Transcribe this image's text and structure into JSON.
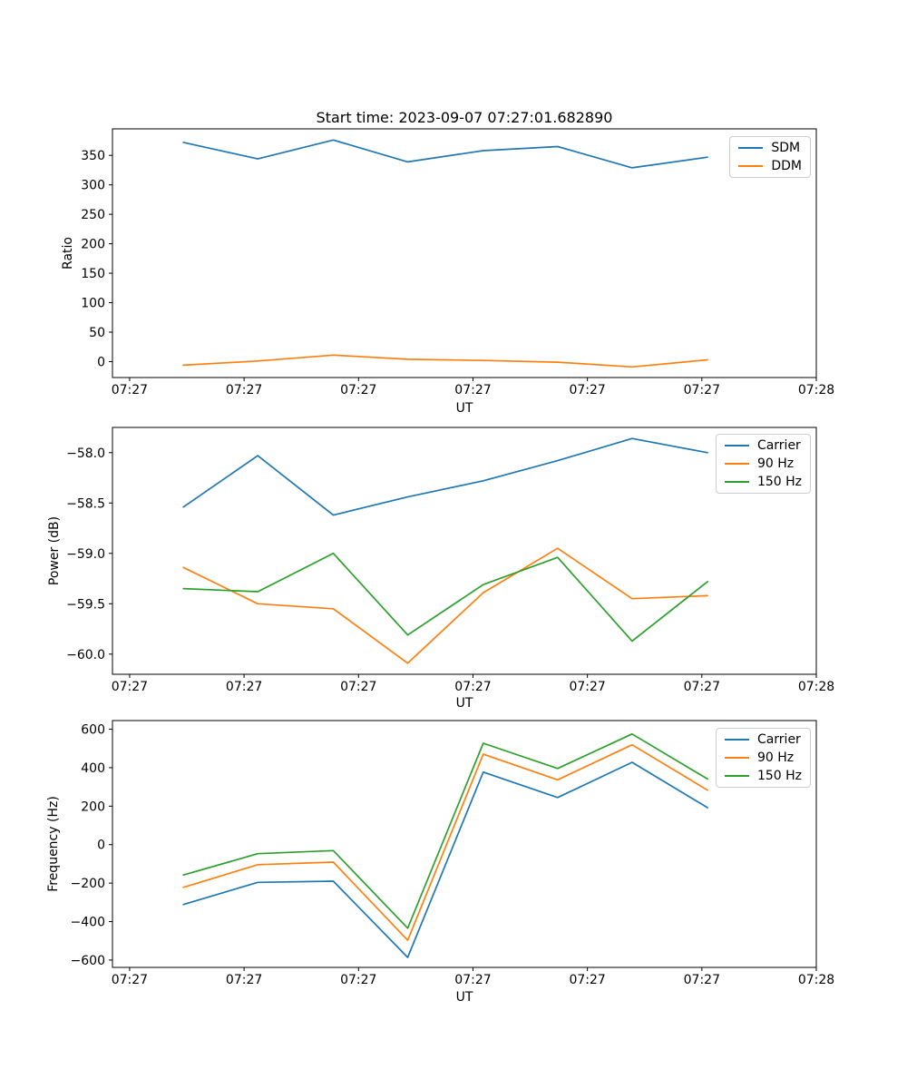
{
  "figure": {
    "title": "Start time: 2023-09-07 07:27:01.682890"
  },
  "palette": {
    "blue": "#1f77b4",
    "orange": "#ff7f0e",
    "green": "#2ca02c",
    "axis": "#000000",
    "legend_border": "#cccccc"
  },
  "chart_data": [
    {
      "type": "line",
      "title": "Start time: 2023-09-07 07:27:01.682890",
      "xlabel": "UT",
      "ylabel": "Ratio",
      "grid": false,
      "legend_position": "upper right",
      "x_seconds_after_072700": [
        4.7,
        11.2,
        17.8,
        24.3,
        30.9,
        37.4,
        43.9,
        50.5
      ],
      "xlim_seconds": [
        -1.5,
        60
      ],
      "xticks_seconds": [
        0,
        10,
        20,
        30,
        40,
        50,
        60
      ],
      "xtick_labels": [
        "07:27",
        "07:27",
        "07:27",
        "07:27",
        "07:27",
        "07:27",
        "07:28"
      ],
      "ylim": [
        -27,
        395
      ],
      "yticks": [
        0,
        50,
        100,
        150,
        200,
        250,
        300,
        350
      ],
      "ytick_labels": [
        "0",
        "50",
        "100",
        "150",
        "200",
        "250",
        "300",
        "350"
      ],
      "series": [
        {
          "name": "SDM",
          "color": "#1f77b4",
          "values": [
            372,
            344,
            376,
            339,
            358,
            365,
            329,
            347
          ]
        },
        {
          "name": "DDM",
          "color": "#ff7f0e",
          "values": [
            -6,
            1,
            11,
            4,
            2,
            -1,
            -9,
            3
          ]
        }
      ]
    },
    {
      "type": "line",
      "title": "",
      "xlabel": "UT",
      "ylabel": "Power (dB)",
      "grid": false,
      "legend_position": "upper right",
      "x_seconds_after_072700": [
        4.7,
        11.2,
        17.8,
        24.3,
        30.9,
        37.4,
        43.9,
        50.5
      ],
      "xlim_seconds": [
        -1.5,
        60
      ],
      "xticks_seconds": [
        0,
        10,
        20,
        30,
        40,
        50,
        60
      ],
      "xtick_labels": [
        "07:27",
        "07:27",
        "07:27",
        "07:27",
        "07:27",
        "07:27",
        "07:28"
      ],
      "ylim": [
        -60.2,
        -57.75
      ],
      "yticks": [
        -58.0,
        -58.5,
        -59.0,
        -59.5,
        -60.0
      ],
      "ytick_labels": [
        "−58.0",
        "−58.5",
        "−59.0",
        "−59.5",
        "−60.0"
      ],
      "series": [
        {
          "name": "Carrier",
          "color": "#1f77b4",
          "values": [
            -58.54,
            -58.03,
            -58.62,
            -58.44,
            -58.28,
            -58.08,
            -57.86,
            -58.0
          ]
        },
        {
          "name": "90 Hz",
          "color": "#ff7f0e",
          "values": [
            -59.14,
            -59.5,
            -59.55,
            -60.09,
            -59.39,
            -58.95,
            -59.45,
            -59.42
          ]
        },
        {
          "name": "150 Hz",
          "color": "#2ca02c",
          "values": [
            -59.35,
            -59.38,
            -59.0,
            -59.81,
            -59.31,
            -59.04,
            -59.87,
            -59.28
          ]
        }
      ]
    },
    {
      "type": "line",
      "title": "",
      "xlabel": "UT",
      "ylabel": "Frequency (Hz)",
      "grid": false,
      "legend_position": "upper right",
      "x_seconds_after_072700": [
        4.7,
        11.2,
        17.8,
        24.3,
        30.9,
        37.4,
        43.9,
        50.5
      ],
      "xlim_seconds": [
        -1.5,
        60
      ],
      "xticks_seconds": [
        0,
        10,
        20,
        30,
        40,
        50,
        60
      ],
      "xtick_labels": [
        "07:27",
        "07:27",
        "07:27",
        "07:27",
        "07:27",
        "07:27",
        "07:28"
      ],
      "ylim": [
        -638,
        645
      ],
      "yticks": [
        -600,
        -400,
        -200,
        0,
        200,
        400,
        600
      ],
      "ytick_labels": [
        "−600",
        "−400",
        "−200",
        "0",
        "200",
        "400",
        "600"
      ],
      "series": [
        {
          "name": "Carrier",
          "color": "#1f77b4",
          "values": [
            -311,
            -196,
            -190,
            -586,
            377,
            245,
            428,
            192
          ]
        },
        {
          "name": "90 Hz",
          "color": "#ff7f0e",
          "values": [
            -222,
            -104,
            -91,
            -497,
            470,
            337,
            519,
            283
          ]
        },
        {
          "name": "150 Hz",
          "color": "#2ca02c",
          "values": [
            -158,
            -47,
            -31,
            -434,
            527,
            396,
            575,
            341
          ]
        }
      ]
    }
  ]
}
